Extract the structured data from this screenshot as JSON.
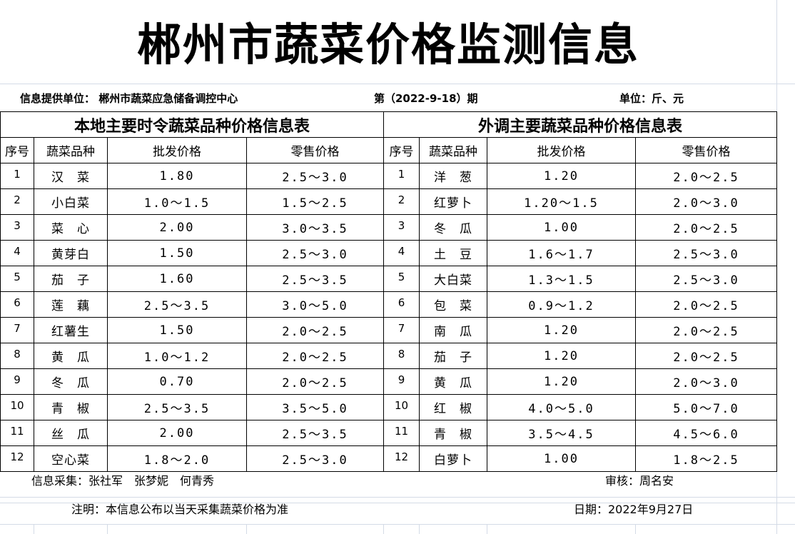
{
  "title": "郴州市蔬菜价格监测信息",
  "info": {
    "provider": "信息提供单位：  郴州市蔬菜应急储备调控中心",
    "issue": "第（2022-9-18）期",
    "unit": "单位：斤、元"
  },
  "local": {
    "title": "本地主要时令蔬菜品种价格信息表",
    "headers": [
      "序号",
      "蔬菜品种",
      "批发价格",
      "零售价格"
    ],
    "rows": [
      [
        "1",
        "汉　菜",
        "1.80",
        "2.5～3.0"
      ],
      [
        "2",
        "小白菜",
        "1.0～1.5",
        "1.5～2.5"
      ],
      [
        "3",
        "菜　心",
        "2.00",
        "3.0～3.5"
      ],
      [
        "4",
        "黄芽白",
        "1.50",
        "2.5～3.0"
      ],
      [
        "5",
        "茄　子",
        "1.60",
        "2.5～3.5"
      ],
      [
        "6",
        "莲　藕",
        "2.5～3.5",
        "3.0～5.0"
      ],
      [
        "7",
        "红薯生",
        "1.50",
        "2.0～2.5"
      ],
      [
        "8",
        "黄　瓜",
        "1.0～1.2",
        "2.0～2.5"
      ],
      [
        "9",
        "冬　瓜",
        "0.70",
        "2.0～2.5"
      ],
      [
        "10",
        "青　椒",
        "2.5～3.5",
        "3.5～5.0"
      ],
      [
        "11",
        "丝　瓜",
        "2.00",
        "2.5～3.5"
      ],
      [
        "12",
        "空心菜",
        "1.8～2.0",
        "2.5～3.0"
      ]
    ]
  },
  "external": {
    "title": "外调主要蔬菜品种价格信息表",
    "headers": [
      "序号",
      "蔬菜品种",
      "批发价格",
      "零售价格"
    ],
    "rows": [
      [
        "1",
        "洋　葱",
        "1.20",
        "2.0～2.5"
      ],
      [
        "2",
        "红萝卜",
        "1.20～1.5",
        "2.0～3.0"
      ],
      [
        "3",
        "冬　瓜",
        "1.00",
        "2.0～2.5"
      ],
      [
        "4",
        "土　豆",
        "1.6～1.7",
        "2.5～3.0"
      ],
      [
        "5",
        "大白菜",
        "1.3～1.5",
        "2.5～3.0"
      ],
      [
        "6",
        "包　菜",
        "0.9～1.2",
        "2.0～2.5"
      ],
      [
        "7",
        "南　瓜",
        "1.20",
        "2.0～2.5"
      ],
      [
        "8",
        "茄　子",
        "1.20",
        "2.0～2.5"
      ],
      [
        "9",
        "黄　瓜",
        "1.20",
        "2.0～3.0"
      ],
      [
        "10",
        "红　椒",
        "4.0～5.0",
        "5.0～7.0"
      ],
      [
        "11",
        "青　椒",
        "3.5～4.5",
        "4.5～6.0"
      ],
      [
        "12",
        "白萝卜",
        "1.00",
        "1.8～2.5"
      ]
    ]
  },
  "footer": {
    "collectors": "信息采集：张社军　张梦妮　何青秀",
    "reviewer": "审核：周名安",
    "note": "注明：本信息公布以当天采集蔬菜价格为准",
    "date": "日期：2022年9月27日"
  }
}
